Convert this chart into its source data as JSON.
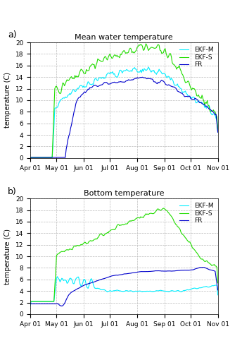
{
  "title_a": "Mean water temperature",
  "title_b": "Bottom temperature",
  "ylabel": "temperature (C)",
  "ylim": [
    0,
    20
  ],
  "yticks": [
    0,
    2,
    4,
    6,
    8,
    10,
    12,
    14,
    16,
    18,
    20
  ],
  "colors": {
    "EKF_M": "#00EEFF",
    "EKF_S": "#22DD00",
    "FR": "#0000CC"
  },
  "background_color": "#FFFFFF",
  "grid_color": "#BBBBBB"
}
